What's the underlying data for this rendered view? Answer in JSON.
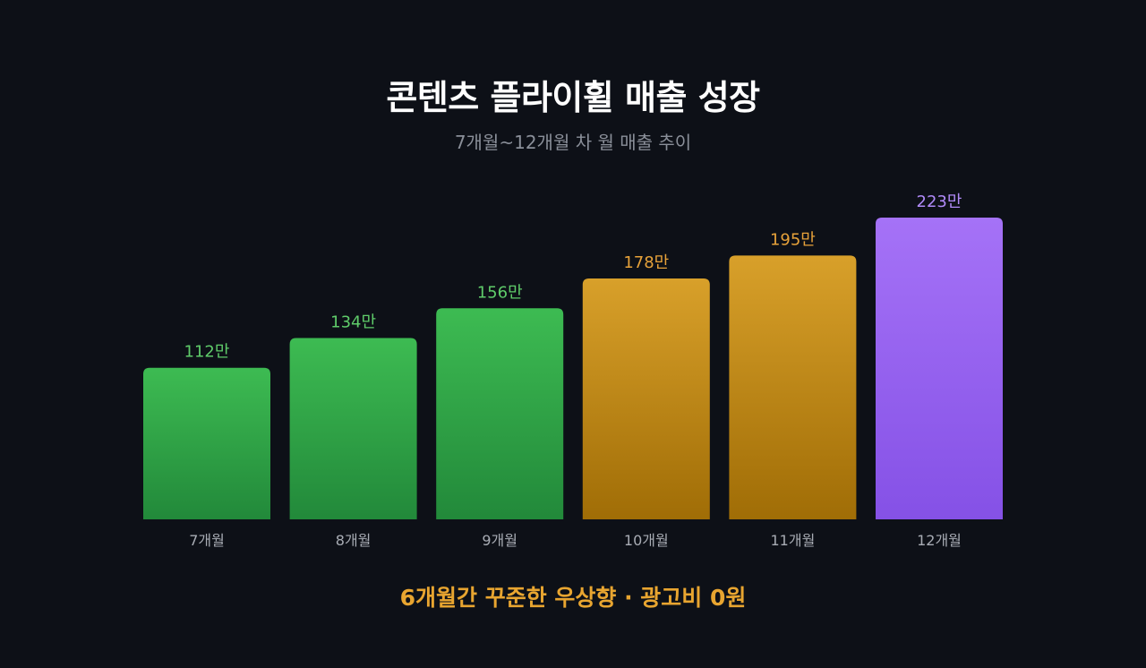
{
  "title": "콘텐츠 플라이휠 매출 성장",
  "subtitle": "7개월~12개월 차 월 매출 추이",
  "footer": "6개월간 꾸준한 우상향 · 광고비 0원",
  "chart_data": {
    "type": "bar",
    "categories": [
      "7개월",
      "8개월",
      "9개월",
      "10개월",
      "11개월",
      "12개월"
    ],
    "values": [
      112,
      134,
      156,
      178,
      195,
      223
    ],
    "value_labels": [
      "112만",
      "134만",
      "156만",
      "178만",
      "195만",
      "223만"
    ],
    "unit": "만",
    "ylim": [
      0,
      252
    ],
    "grid": false,
    "colors": {
      "green_top": "#3dbb52",
      "green_bottom": "#22893a",
      "gold_top": "#d8a02a",
      "gold_bottom": "#a06d06",
      "purple_top": "#a572f7",
      "purple_bottom": "#8551e6",
      "green_label": "#5fcc6a",
      "gold_label": "#e7a23a",
      "purple_label": "#b08af8",
      "tick_label": "#a8acb4"
    },
    "bar_groups": [
      "green",
      "green",
      "green",
      "gold",
      "gold",
      "purple"
    ]
  }
}
